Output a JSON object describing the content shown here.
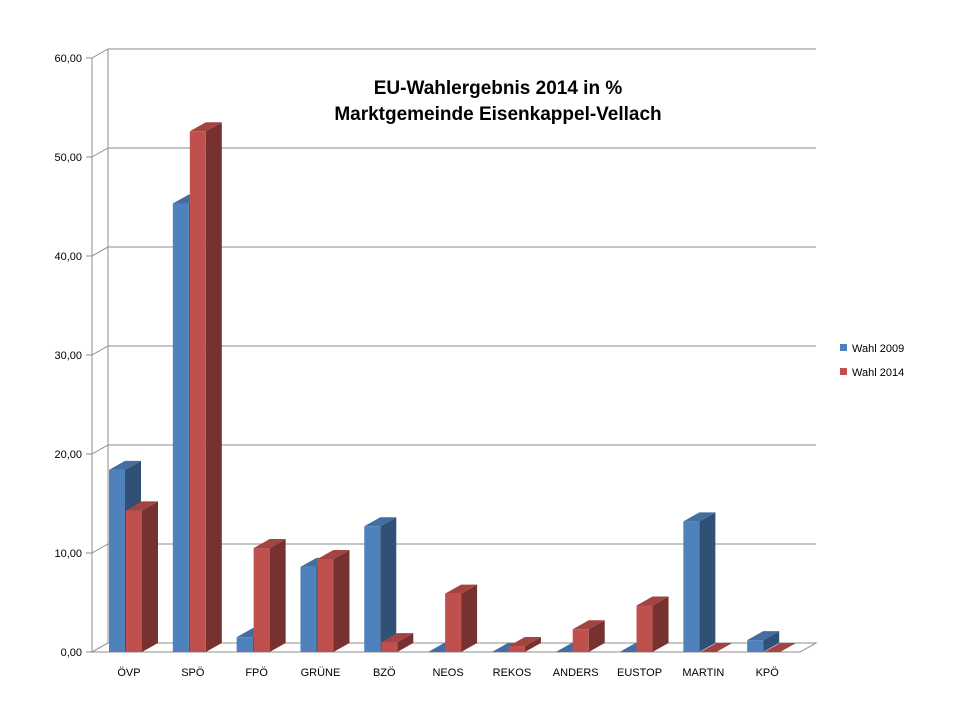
{
  "chart_data": {
    "type": "bar",
    "title_lines": [
      "EU-Wahlergebnis 2014  in %",
      "Marktgemeinde Eisenkappel-Vellach"
    ],
    "categories": [
      "ÖVP",
      "SPÖ",
      "FPÖ",
      "GRÜNE",
      "BZÖ",
      "NEOS",
      "REKOS",
      "ANDERS",
      "EUSTOP",
      "MARTIN",
      "KPÖ"
    ],
    "series": [
      {
        "name": "Wahl 2009",
        "color": "#4F81BD",
        "values": [
          18.4,
          45.3,
          1.5,
          8.6,
          12.7,
          0.0,
          0.0,
          0.0,
          0.0,
          13.2,
          1.2
        ]
      },
      {
        "name": "Wahl 2014",
        "color": "#C0504D",
        "values": [
          14.3,
          52.6,
          10.5,
          9.4,
          1.0,
          5.9,
          0.6,
          2.3,
          4.7,
          0.0,
          0.0
        ]
      }
    ],
    "y_ticks": [
      "0,00",
      "10,00",
      "20,00",
      "30,00",
      "40,00",
      "50,00",
      "60,00"
    ],
    "ylim": [
      0,
      60
    ],
    "grid": true,
    "legend_position": "right",
    "three_d": true
  }
}
